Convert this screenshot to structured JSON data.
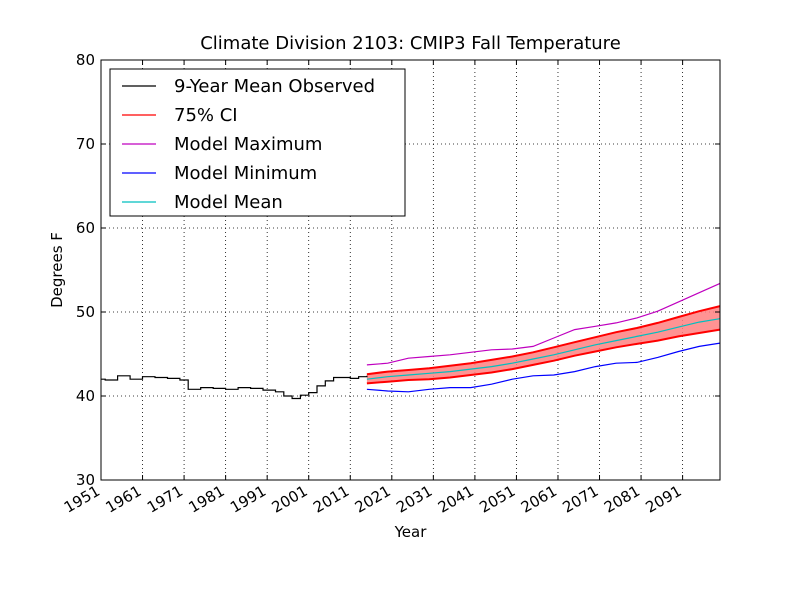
{
  "chart_data": {
    "type": "line",
    "title": "Climate Division 2103: CMIP3 Fall Temperature",
    "xlabel": "Year",
    "ylabel": "Degrees F",
    "xlim": [
      1951,
      2100
    ],
    "ylim": [
      30,
      80
    ],
    "x_ticks": [
      1951,
      1961,
      1971,
      1981,
      1991,
      2001,
      2011,
      2021,
      2031,
      2041,
      2051,
      2061,
      2071,
      2081,
      2091
    ],
    "y_ticks": [
      30,
      40,
      50,
      60,
      70,
      80
    ],
    "grid": true,
    "legend_position": "top-left",
    "series": [
      {
        "name": "9-Year Mean Observed",
        "color": "#000000",
        "style": "step",
        "x": [
          1951,
          1952,
          1955,
          1958,
          1961,
          1964,
          1967,
          1970,
          1972,
          1975,
          1978,
          1981,
          1984,
          1987,
          1990,
          1993,
          1995,
          1997,
          1999,
          2001,
          2003,
          2005,
          2007,
          2009,
          2011,
          2013,
          2015
        ],
        "y": [
          42.0,
          41.9,
          42.4,
          42.0,
          42.3,
          42.2,
          42.1,
          41.9,
          40.8,
          41.0,
          40.9,
          40.8,
          41.0,
          40.9,
          40.7,
          40.5,
          40.0,
          39.7,
          40.1,
          40.4,
          41.2,
          41.8,
          42.2,
          42.2,
          42.1,
          42.3,
          42.4
        ]
      },
      {
        "name": "75% CI",
        "color": "#ff0000",
        "fill": "#ff8080",
        "x": [
          2015,
          2020,
          2025,
          2030,
          2035,
          2040,
          2045,
          2050,
          2055,
          2060,
          2065,
          2070,
          2075,
          2080,
          2085,
          2090,
          2095,
          2100
        ],
        "upper": [
          42.6,
          42.9,
          43.1,
          43.3,
          43.6,
          43.9,
          44.3,
          44.7,
          45.2,
          45.8,
          46.4,
          47.0,
          47.6,
          48.1,
          48.7,
          49.4,
          50.1,
          50.7
        ],
        "lower": [
          41.5,
          41.7,
          41.9,
          42.0,
          42.2,
          42.5,
          42.8,
          43.2,
          43.7,
          44.2,
          44.8,
          45.3,
          45.8,
          46.2,
          46.6,
          47.1,
          47.5,
          47.9
        ]
      },
      {
        "name": "Model Maximum",
        "color": "#bf00bf",
        "x": [
          2015,
          2020,
          2025,
          2030,
          2035,
          2040,
          2045,
          2050,
          2055,
          2060,
          2065,
          2070,
          2075,
          2080,
          2085,
          2090,
          2095,
          2100
        ],
        "y": [
          43.7,
          43.9,
          44.5,
          44.7,
          44.9,
          45.2,
          45.5,
          45.6,
          45.9,
          46.9,
          47.9,
          48.3,
          48.7,
          49.3,
          50.1,
          51.2,
          52.3,
          53.4
        ]
      },
      {
        "name": "Model Minimum",
        "color": "#0000ff",
        "x": [
          2015,
          2020,
          2025,
          2030,
          2035,
          2040,
          2045,
          2050,
          2055,
          2060,
          2065,
          2070,
          2075,
          2080,
          2085,
          2090,
          2095,
          2100
        ],
        "y": [
          40.8,
          40.6,
          40.5,
          40.8,
          41.0,
          41.0,
          41.4,
          42.0,
          42.4,
          42.5,
          42.9,
          43.5,
          43.9,
          44.0,
          44.6,
          45.3,
          45.9,
          46.3
        ]
      },
      {
        "name": "Model Mean",
        "color": "#00bfbf",
        "x": [
          2015,
          2020,
          2025,
          2030,
          2035,
          2040,
          2045,
          2050,
          2055,
          2060,
          2065,
          2070,
          2075,
          2080,
          2085,
          2090,
          2095,
          2100
        ],
        "y": [
          42.0,
          42.3,
          42.5,
          42.7,
          42.9,
          43.2,
          43.5,
          43.9,
          44.4,
          44.9,
          45.5,
          46.1,
          46.6,
          47.1,
          47.6,
          48.2,
          48.8,
          49.2
        ]
      }
    ]
  }
}
